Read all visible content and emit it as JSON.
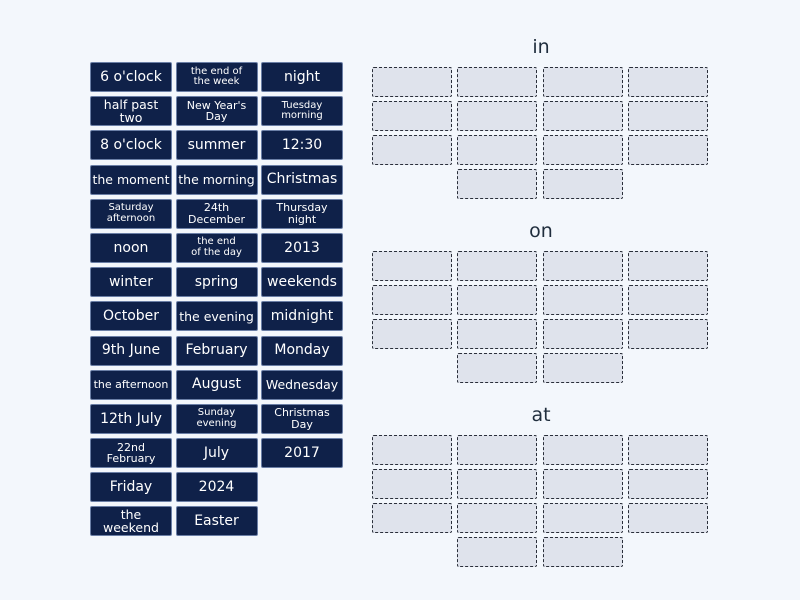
{
  "cards": [
    {
      "label": "6 o'clock",
      "size": ""
    },
    {
      "label": "the end of\nthe week",
      "size": "xxs"
    },
    {
      "label": "night",
      "size": ""
    },
    {
      "label": "half past two",
      "size": "sm"
    },
    {
      "label": "New Year's Day",
      "size": "xs"
    },
    {
      "label": "Tuesday\nmorning",
      "size": "xxs"
    },
    {
      "label": "8 o'clock",
      "size": ""
    },
    {
      "label": "summer",
      "size": ""
    },
    {
      "label": "12:30",
      "size": ""
    },
    {
      "label": "the moment",
      "size": "sm"
    },
    {
      "label": "the morning",
      "size": "sm"
    },
    {
      "label": "Christmas",
      "size": ""
    },
    {
      "label": "Saturday\nafternoon",
      "size": "xxs"
    },
    {
      "label": "24th December",
      "size": "xs"
    },
    {
      "label": "Thursday night",
      "size": "xs"
    },
    {
      "label": "noon",
      "size": ""
    },
    {
      "label": "the end\nof the day",
      "size": "xxs"
    },
    {
      "label": "2013",
      "size": ""
    },
    {
      "label": "winter",
      "size": ""
    },
    {
      "label": "spring",
      "size": ""
    },
    {
      "label": "weekends",
      "size": ""
    },
    {
      "label": "October",
      "size": ""
    },
    {
      "label": "the evening",
      "size": "sm"
    },
    {
      "label": "midnight",
      "size": ""
    },
    {
      "label": "9th June",
      "size": ""
    },
    {
      "label": "February",
      "size": ""
    },
    {
      "label": "Monday",
      "size": ""
    },
    {
      "label": "the afternoon",
      "size": "xs"
    },
    {
      "label": "August",
      "size": ""
    },
    {
      "label": "Wednesday",
      "size": "sm"
    },
    {
      "label": "12th July",
      "size": ""
    },
    {
      "label": "Sunday\nevening",
      "size": "xxs"
    },
    {
      "label": "Christmas Day",
      "size": "xs"
    },
    {
      "label": "22nd February",
      "size": "xs"
    },
    {
      "label": "July",
      "size": ""
    },
    {
      "label": "2017",
      "size": ""
    },
    {
      "label": "Friday",
      "size": ""
    },
    {
      "label": "2024",
      "size": ""
    },
    {
      "label": "",
      "size": "hidden"
    },
    {
      "label": "the weekend",
      "size": "sm"
    },
    {
      "label": "Easter",
      "size": ""
    }
  ],
  "groups": [
    {
      "title": "in",
      "slots": 14
    },
    {
      "title": "on",
      "slots": 14
    },
    {
      "title": "at",
      "slots": 14
    }
  ]
}
